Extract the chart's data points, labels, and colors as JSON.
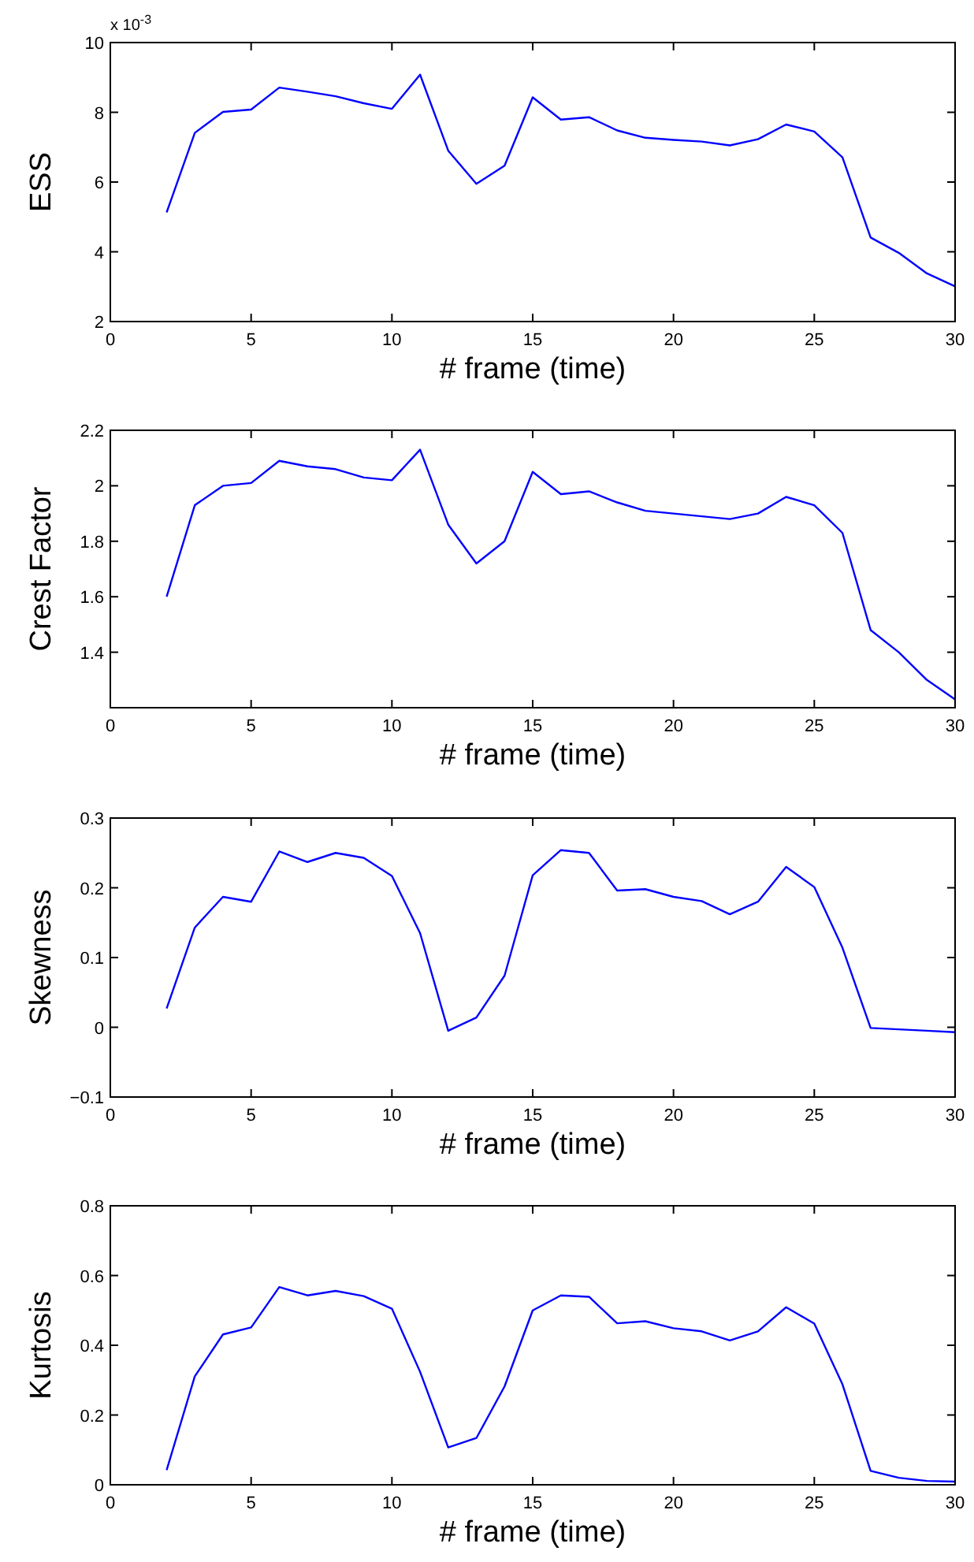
{
  "chart_data": [
    {
      "type": "line",
      "xlabel": "# frame (time)",
      "ylabel": "ESS",
      "annotations": [
        "x 10$^{-3}$"
      ],
      "x": [
        2,
        3,
        4,
        5,
        6,
        7,
        8,
        9,
        10,
        11,
        12,
        13,
        14,
        15,
        16,
        17,
        18,
        19,
        20,
        21,
        22,
        23,
        24,
        25,
        26,
        27,
        28,
        29,
        30
      ],
      "xlim": [
        0,
        30
      ],
      "xticks": [
        0,
        5,
        10,
        15,
        20,
        25,
        30
      ],
      "ylim": [
        2,
        10
      ],
      "yticks": [
        2,
        4,
        6,
        8,
        10
      ],
      "series": [
        {
          "color": "#0000ff",
          "values": [
            5.13,
            7.41,
            8.01,
            8.08,
            8.71,
            8.59,
            8.46,
            8.26,
            8.1,
            9.08,
            6.9,
            5.95,
            6.47,
            8.43,
            7.79,
            7.86,
            7.48,
            7.27,
            7.21,
            7.16,
            7.05,
            7.23,
            7.65,
            7.45,
            6.71,
            4.41,
            3.97,
            3.38,
            3.01
          ]
        }
      ]
    },
    {
      "type": "line",
      "xlabel": "# frame (time)",
      "ylabel": "Crest Factor",
      "x": [
        2,
        3,
        4,
        5,
        6,
        7,
        8,
        9,
        10,
        11,
        12,
        13,
        14,
        15,
        16,
        17,
        18,
        19,
        20,
        21,
        22,
        23,
        24,
        25,
        26,
        27,
        28,
        29,
        30
      ],
      "xlim": [
        0,
        30
      ],
      "xticks": [
        0,
        5,
        10,
        15,
        20,
        25,
        30
      ],
      "ylim": [
        1.2,
        2.2
      ],
      "yticks": [
        1.4,
        1.6,
        1.8,
        2,
        2.2
      ],
      "series": [
        {
          "color": "#0000ff",
          "values": [
            1.6,
            1.93,
            2.0,
            2.01,
            2.09,
            2.07,
            2.06,
            2.03,
            2.02,
            2.13,
            1.86,
            1.72,
            1.8,
            2.05,
            1.97,
            1.98,
            1.94,
            1.91,
            1.9,
            1.89,
            1.88,
            1.9,
            1.96,
            1.93,
            1.83,
            1.48,
            1.4,
            1.3,
            1.23
          ]
        }
      ]
    },
    {
      "type": "line",
      "xlabel": "# frame (time)",
      "ylabel": "Skewness",
      "x": [
        2,
        3,
        4,
        5,
        6,
        7,
        8,
        9,
        10,
        11,
        12,
        13,
        14,
        15,
        16,
        17,
        18,
        19,
        20,
        21,
        22,
        23,
        24,
        25,
        26,
        27,
        28,
        29,
        30
      ],
      "xlim": [
        0,
        30
      ],
      "xticks": [
        0,
        5,
        10,
        15,
        20,
        25,
        30
      ],
      "ylim": [
        -0.1,
        0.3
      ],
      "yticks": [
        {
          "value": -0.1,
          "label": "−0.1"
        },
        0,
        0.1,
        0.2,
        0.3
      ],
      "series": [
        {
          "color": "#0000ff",
          "values": [
            0.027,
            0.143,
            0.187,
            0.18,
            0.252,
            0.237,
            0.25,
            0.243,
            0.217,
            0.135,
            -0.005,
            0.014,
            0.074,
            0.218,
            0.254,
            0.25,
            0.196,
            0.198,
            0.187,
            0.181,
            0.162,
            0.18,
            0.23,
            0.201,
            0.114,
            -0.001,
            -0.003,
            -0.005,
            -0.007
          ]
        }
      ]
    },
    {
      "type": "line",
      "xlabel": "# frame (time)",
      "ylabel": "Kurtosis",
      "x": [
        2,
        3,
        4,
        5,
        6,
        7,
        8,
        9,
        10,
        11,
        12,
        13,
        14,
        15,
        16,
        17,
        18,
        19,
        20,
        21,
        22,
        23,
        24,
        25,
        26,
        27,
        28,
        29,
        30
      ],
      "xlim": [
        0,
        30
      ],
      "xticks": [
        0,
        5,
        10,
        15,
        20,
        25,
        30
      ],
      "ylim": [
        0,
        0.8
      ],
      "yticks": [
        0,
        0.2,
        0.4,
        0.6,
        0.8
      ],
      "series": [
        {
          "color": "#0000ff",
          "values": [
            0.042,
            0.311,
            0.431,
            0.451,
            0.567,
            0.543,
            0.556,
            0.541,
            0.505,
            0.324,
            0.107,
            0.134,
            0.282,
            0.5,
            0.543,
            0.539,
            0.463,
            0.469,
            0.449,
            0.44,
            0.414,
            0.44,
            0.509,
            0.462,
            0.288,
            0.04,
            0.02,
            0.011,
            0.009
          ]
        }
      ]
    }
  ]
}
